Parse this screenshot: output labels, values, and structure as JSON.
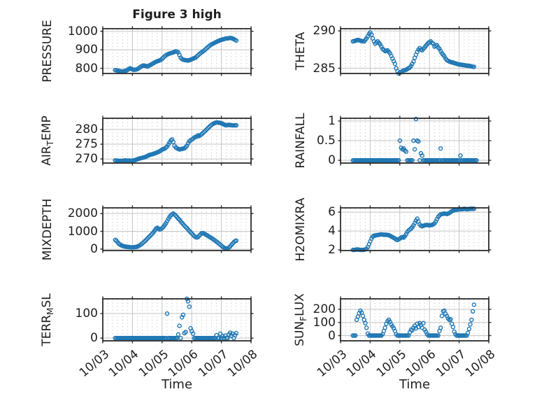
{
  "title": "Figure 3 high",
  "xlabel": "Time",
  "x_tick_labels": [
    "10/03",
    "10/04",
    "10/05",
    "10/06",
    "10/07",
    "10/08"
  ],
  "xlim": [
    0,
    5
  ],
  "colors": {
    "marker": "#1f77b4",
    "axis": "#2b2b2b",
    "major_grid": "#c4c4c4",
    "minor_grid": "#c9c9c9",
    "background": "#ffffff"
  },
  "chart_data": [
    {
      "type": "scatter",
      "id": "pressure",
      "name": "PRESSURE",
      "col": 0,
      "row": 0,
      "label_parts": [
        {
          "t": "PRESSURE"
        }
      ],
      "ylim": [
        772,
        1014
      ],
      "yticks": [
        {
          "v": 800,
          "label": "800"
        },
        {
          "v": 900,
          "label": "900"
        },
        {
          "v": 1000,
          "label": "1000"
        }
      ],
      "y_minor_step": 20,
      "x_start": 0.42,
      "x_step": 0.0416667,
      "y": [
        790,
        789,
        787,
        786,
        784,
        783,
        783,
        784,
        786,
        788,
        792,
        796,
        800,
        797,
        794,
        792,
        792,
        793,
        796,
        800,
        805,
        810,
        813,
        815,
        814,
        812,
        810,
        813,
        817,
        820,
        824,
        828,
        832,
        835,
        838,
        840,
        843,
        846,
        852,
        858,
        865,
        870,
        874,
        877,
        880,
        882,
        884,
        886,
        889,
        892,
        890,
        886,
        872,
        858,
        850,
        847,
        845,
        844,
        843,
        842,
        844,
        846,
        849,
        852,
        855,
        858,
        864,
        870,
        876,
        882,
        887,
        891,
        896,
        902,
        908,
        914,
        920,
        925,
        929,
        933,
        936,
        940,
        943,
        946,
        949,
        952,
        954,
        956,
        958,
        960,
        961,
        962,
        963,
        964,
        963,
        961,
        958,
        954,
        950
      ]
    },
    {
      "type": "scatter",
      "id": "theta",
      "name": "THETA",
      "col": 1,
      "row": 0,
      "label_parts": [
        {
          "t": "THETA"
        }
      ],
      "ylim": [
        284.3,
        290.3
      ],
      "yticks": [
        {
          "v": 285,
          "label": "285"
        },
        {
          "v": 290,
          "label": "290"
        }
      ],
      "y_minor_step": 1,
      "x_start": 0.42,
      "x_step": 0.0416667,
      "y": [
        288.6,
        288.65,
        288.7,
        288.75,
        288.8,
        288.75,
        288.7,
        288.65,
        288.6,
        288.6,
        288.8,
        289.0,
        289.3,
        289.6,
        289.8,
        289.5,
        289.0,
        288.6,
        288.3,
        288.45,
        288.6,
        288.4,
        288.2,
        287.9,
        287.6,
        287.45,
        287.3,
        287.35,
        287.4,
        287.2,
        287.0,
        286.65,
        286.3,
        285.95,
        285.6,
        285.0,
        284.6,
        284.3,
        284.4,
        284.5,
        284.6,
        284.7,
        284.75,
        284.8,
        284.9,
        285.0,
        285.1,
        285.3,
        285.6,
        285.9,
        286.4,
        286.8,
        287.2,
        287.5,
        287.7,
        287.5,
        287.4,
        287.6,
        287.8,
        288.0,
        288.2,
        288.4,
        288.5,
        288.6,
        288.4,
        288.3,
        287.9,
        288.0,
        288.1,
        287.8,
        287.6,
        287.3,
        287.0,
        286.8,
        286.6,
        286.3,
        286.1,
        286.0,
        285.9,
        285.85,
        285.8,
        285.75,
        285.7,
        285.65,
        285.6,
        285.55,
        285.5,
        285.5,
        285.45,
        285.45,
        285.4,
        285.4,
        285.35,
        285.35,
        285.3,
        285.3,
        285.25,
        285.2,
        285.2
      ]
    },
    {
      "type": "scatter",
      "id": "air_temp",
      "name": "AIR_TEMP",
      "col": 0,
      "row": 1,
      "label_parts": [
        {
          "t": "AIR"
        },
        {
          "t": "T",
          "sub": true
        },
        {
          "t": "EMP"
        }
      ],
      "ylim": [
        268.6,
        283.8
      ],
      "yticks": [
        {
          "v": 270,
          "label": "270"
        },
        {
          "v": 275,
          "label": "275"
        },
        {
          "v": 280,
          "label": "280"
        }
      ],
      "y_minor_step": 1,
      "x_start": 0.42,
      "x_step": 0.0416667,
      "y": [
        269.5,
        269.45,
        269.4,
        269.35,
        269.3,
        269.35,
        269.4,
        269.45,
        269.5,
        269.48,
        269.45,
        269.43,
        269.4,
        269.4,
        269.4,
        269.5,
        269.6,
        269.75,
        269.9,
        270.05,
        270.2,
        270.3,
        270.4,
        270.5,
        270.6,
        270.8,
        271.0,
        271.2,
        271.4,
        271.5,
        271.6,
        271.75,
        271.9,
        272.05,
        272.2,
        272.4,
        272.6,
        272.9,
        273.2,
        273.35,
        273.5,
        273.85,
        274.2,
        274.9,
        275.6,
        276.3,
        276.6,
        275.8,
        274.5,
        273.9,
        273.6,
        273.4,
        273.2,
        273.3,
        273.4,
        273.5,
        273.6,
        274.0,
        274.5,
        275.3,
        276.0,
        276.3,
        276.6,
        276.9,
        277.3,
        277.45,
        277.6,
        278.0,
        277.8,
        278.1,
        278.4,
        278.8,
        279.2,
        279.6,
        280.0,
        280.4,
        280.8,
        281.2,
        281.6,
        281.85,
        282.1,
        282.25,
        282.4,
        282.35,
        282.3,
        282.2,
        282.1,
        281.9,
        281.7,
        281.5,
        281.4,
        281.5,
        281.6,
        281.5,
        281.45,
        281.4,
        281.4,
        281.4,
        281.4
      ]
    },
    {
      "type": "scatter",
      "id": "rainfall",
      "name": "RAINFALL",
      "col": 1,
      "row": 1,
      "label_parts": [
        {
          "t": "RAINFALL"
        }
      ],
      "ylim": [
        -0.07,
        1.07
      ],
      "yticks": [
        {
          "v": 0,
          "label": "0"
        },
        {
          "v": 0.5,
          "label": "0.5"
        },
        {
          "v": 1,
          "label": "1"
        }
      ],
      "y_minor_step": 0.1,
      "x_start": 0.42,
      "x_step": 0.0416667,
      "y": [
        0,
        0,
        0,
        0,
        0,
        0,
        0,
        0,
        0,
        0,
        0,
        0,
        0,
        0,
        0,
        0,
        0,
        0,
        0,
        0,
        0,
        0,
        0,
        0,
        0,
        0,
        0,
        0,
        0,
        0,
        0,
        0,
        0,
        0,
        0,
        0,
        0,
        0,
        0.5,
        0.32,
        0.28,
        0.3,
        0.25,
        0.22,
        0,
        0,
        0,
        0,
        0,
        0.5,
        0.28,
        1.05,
        0.5,
        0.48,
        0,
        0.18,
        0.12,
        0,
        0,
        0,
        0,
        0,
        0,
        0,
        0,
        0,
        0,
        0,
        0,
        0,
        0,
        0.3,
        0,
        0,
        0,
        0,
        0,
        0,
        0,
        0,
        0,
        0,
        0,
        0,
        0,
        0,
        0,
        0.12,
        0,
        0,
        0,
        0,
        0,
        0,
        0,
        0,
        0,
        0,
        0,
        0,
        0
      ]
    },
    {
      "type": "scatter",
      "id": "mixdepth",
      "name": "MIXDEPTH",
      "col": 0,
      "row": 2,
      "label_parts": [
        {
          "t": "MIXDEPTH"
        }
      ],
      "ylim": [
        -80,
        2320
      ],
      "yticks": [
        {
          "v": 0,
          "label": "0"
        },
        {
          "v": 1000,
          "label": "1000"
        },
        {
          "v": 2000,
          "label": "2000"
        }
      ],
      "y_minor_step": 200,
      "x_start": 0.42,
      "x_step": 0.0416667,
      "y": [
        520,
        470,
        380,
        300,
        250,
        210,
        185,
        160,
        150,
        135,
        125,
        115,
        108,
        102,
        100,
        105,
        112,
        125,
        150,
        180,
        220,
        270,
        330,
        390,
        450,
        520,
        590,
        660,
        730,
        800,
        870,
        950,
        1050,
        1150,
        1200,
        1150,
        1100,
        1130,
        1180,
        1250,
        1350,
        1450,
        1570,
        1700,
        1800,
        1900,
        1960,
        2000,
        1950,
        1880,
        1800,
        1720,
        1650,
        1560,
        1480,
        1400,
        1320,
        1250,
        1180,
        1100,
        1020,
        950,
        880,
        800,
        730,
        680,
        650,
        680,
        750,
        830,
        890,
        900,
        870,
        830,
        790,
        750,
        700,
        660,
        620,
        570,
        520,
        470,
        420,
        370,
        310,
        250,
        190,
        130,
        80,
        50,
        30,
        40,
        80,
        150,
        230,
        310,
        390,
        450,
        480
      ]
    },
    {
      "type": "scatter",
      "id": "h2omixra",
      "name": "H2OMIXRA",
      "col": 1,
      "row": 2,
      "label_parts": [
        {
          "t": "H2OMIXRA"
        }
      ],
      "ylim": [
        1.93,
        6.45
      ],
      "yticks": [
        {
          "v": 2,
          "label": "2"
        },
        {
          "v": 4,
          "label": "4"
        },
        {
          "v": 6,
          "label": "6"
        }
      ],
      "y_minor_step": 0.5,
      "x_start": 0.42,
      "x_step": 0.0416667,
      "y": [
        2.0,
        2.0,
        2.02,
        2.05,
        2.05,
        2.02,
        2.0,
        2.0,
        2.0,
        2.02,
        2.05,
        2.1,
        2.3,
        2.6,
        2.9,
        3.2,
        3.4,
        3.5,
        3.52,
        3.55,
        3.58,
        3.6,
        3.62,
        3.65,
        3.63,
        3.6,
        3.6,
        3.6,
        3.58,
        3.55,
        3.5,
        3.42,
        3.35,
        3.28,
        3.2,
        3.1,
        3.05,
        3.12,
        3.2,
        3.3,
        3.35,
        3.3,
        3.45,
        3.65,
        3.9,
        4.05,
        4.15,
        4.25,
        4.4,
        4.6,
        4.85,
        5.1,
        5.3,
        5.0,
        4.7,
        4.55,
        4.5,
        4.55,
        4.6,
        4.62,
        4.65,
        4.62,
        4.6,
        4.62,
        4.65,
        4.7,
        4.8,
        5.0,
        5.25,
        5.5,
        5.65,
        5.75,
        5.8,
        5.82,
        5.85,
        5.83,
        5.8,
        5.85,
        5.9,
        6.0,
        6.1,
        6.15,
        6.2,
        6.22,
        6.25,
        6.27,
        6.3,
        6.3,
        6.3,
        6.32,
        6.35,
        6.33,
        6.3,
        6.32,
        6.33,
        6.35,
        6.35,
        6.35,
        6.35
      ]
    },
    {
      "type": "scatter",
      "id": "terr_msl",
      "name": "TERR_MSL",
      "col": 0,
      "row": 3,
      "label_parts": [
        {
          "t": "TERR"
        },
        {
          "t": "M",
          "sub": true
        },
        {
          "t": "SL"
        }
      ],
      "ylim": [
        -11,
        160
      ],
      "yticks": [
        {
          "v": 0,
          "label": "0"
        },
        {
          "v": 100,
          "label": "100"
        }
      ],
      "y_minor_step": 20,
      "x_start": 0.42,
      "x_step": 0.0416667,
      "y": [
        0,
        0,
        0,
        0,
        0,
        0,
        0,
        0,
        0,
        0,
        0,
        0,
        0,
        0,
        0,
        0,
        0,
        0,
        0,
        0,
        0,
        0,
        0,
        0,
        0,
        0,
        0,
        0,
        0,
        0,
        0,
        0,
        0,
        0,
        0,
        0,
        0,
        0,
        0,
        0,
        0,
        0,
        100,
        0,
        0,
        0,
        0,
        0,
        0,
        0,
        0,
        15,
        50,
        0,
        85,
        95,
        20,
        25,
        160,
        150,
        128,
        40,
        28,
        18,
        0,
        0,
        0,
        0,
        0,
        0,
        0,
        0,
        0,
        0,
        0,
        0,
        0,
        0,
        0,
        0,
        0,
        0,
        12,
        0,
        0,
        18,
        0,
        8,
        0,
        10,
        0,
        0,
        15,
        22,
        10,
        18,
        0,
        12,
        20
      ]
    },
    {
      "type": "scatter",
      "id": "sun_flux",
      "name": "SUN_FLUX",
      "col": 1,
      "row": 3,
      "label_parts": [
        {
          "t": "SUN"
        },
        {
          "t": "F",
          "sub": true
        },
        {
          "t": "LUX"
        }
      ],
      "ylim": [
        -40,
        280
      ],
      "yticks": [
        {
          "v": 0,
          "label": "0"
        },
        {
          "v": 100,
          "label": "100"
        },
        {
          "v": 200,
          "label": "200"
        }
      ],
      "y_minor_step": 20,
      "x_start": 0.42,
      "x_step": 0.0416667,
      "y": [
        0,
        0,
        0,
        120,
        145,
        170,
        190,
        175,
        150,
        120,
        95,
        60,
        15,
        0,
        0,
        0,
        0,
        0,
        0,
        0,
        0,
        0,
        0,
        0,
        10,
        35,
        60,
        90,
        110,
        120,
        105,
        85,
        70,
        55,
        35,
        12,
        0,
        0,
        0,
        0,
        0,
        0,
        0,
        0,
        0,
        0,
        25,
        45,
        40,
        60,
        75,
        55,
        90,
        65,
        95,
        80,
        60,
        95,
        45,
        30,
        10,
        0,
        0,
        0,
        0,
        0,
        0,
        0,
        0,
        0,
        35,
        60,
        150,
        185,
        190,
        165,
        150,
        130,
        120,
        125,
        90,
        65,
        30,
        10,
        0,
        0,
        0,
        0,
        0,
        0,
        0,
        0,
        0,
        20,
        50,
        85,
        120,
        185,
        235
      ]
    }
  ]
}
